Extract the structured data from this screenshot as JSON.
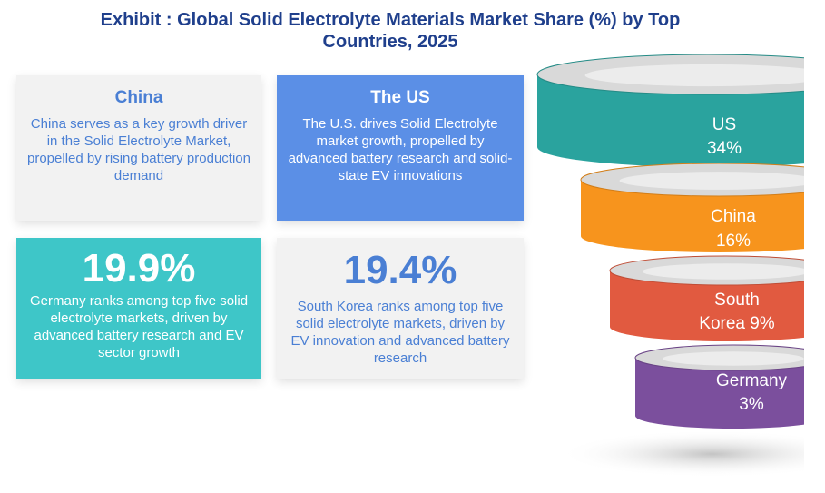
{
  "title_line1": "Exhibit : Global Solid Electrolyte Materials Market Share (%) by Top",
  "title_line2": "Countries, 2025",
  "cards": {
    "china": {
      "heading": "China",
      "text": "China serves as a key growth driver in the Solid Electrolyte Market, propelled by rising battery production demand"
    },
    "us": {
      "heading": "The US",
      "text": "The U.S. drives Solid Electrolyte market growth, propelled by advanced battery research and solid-state EV innovations"
    },
    "germany": {
      "value": "19.9%",
      "text": "Germany ranks among top five solid electrolyte markets, driven by advanced battery research and EV sector growth"
    },
    "korea": {
      "value": "19.4%",
      "text": "South Korea ranks among top five solid electrolyte markets, driven by EV innovation and advanced battery research"
    }
  },
  "chart_data": {
    "type": "funnel",
    "categories": [
      "US",
      "China",
      "South Korea",
      "Germany"
    ],
    "values": [
      34,
      16,
      9,
      3
    ],
    "labels": [
      [
        "US",
        "34%"
      ],
      [
        "China",
        "16%"
      ],
      [
        "South",
        "Korea 9%"
      ],
      [
        "Germany",
        "3%"
      ]
    ],
    "colors": [
      "#2aa39e",
      "#f7941d",
      "#e15a40",
      "#7b4f9d"
    ],
    "unit": "%"
  }
}
